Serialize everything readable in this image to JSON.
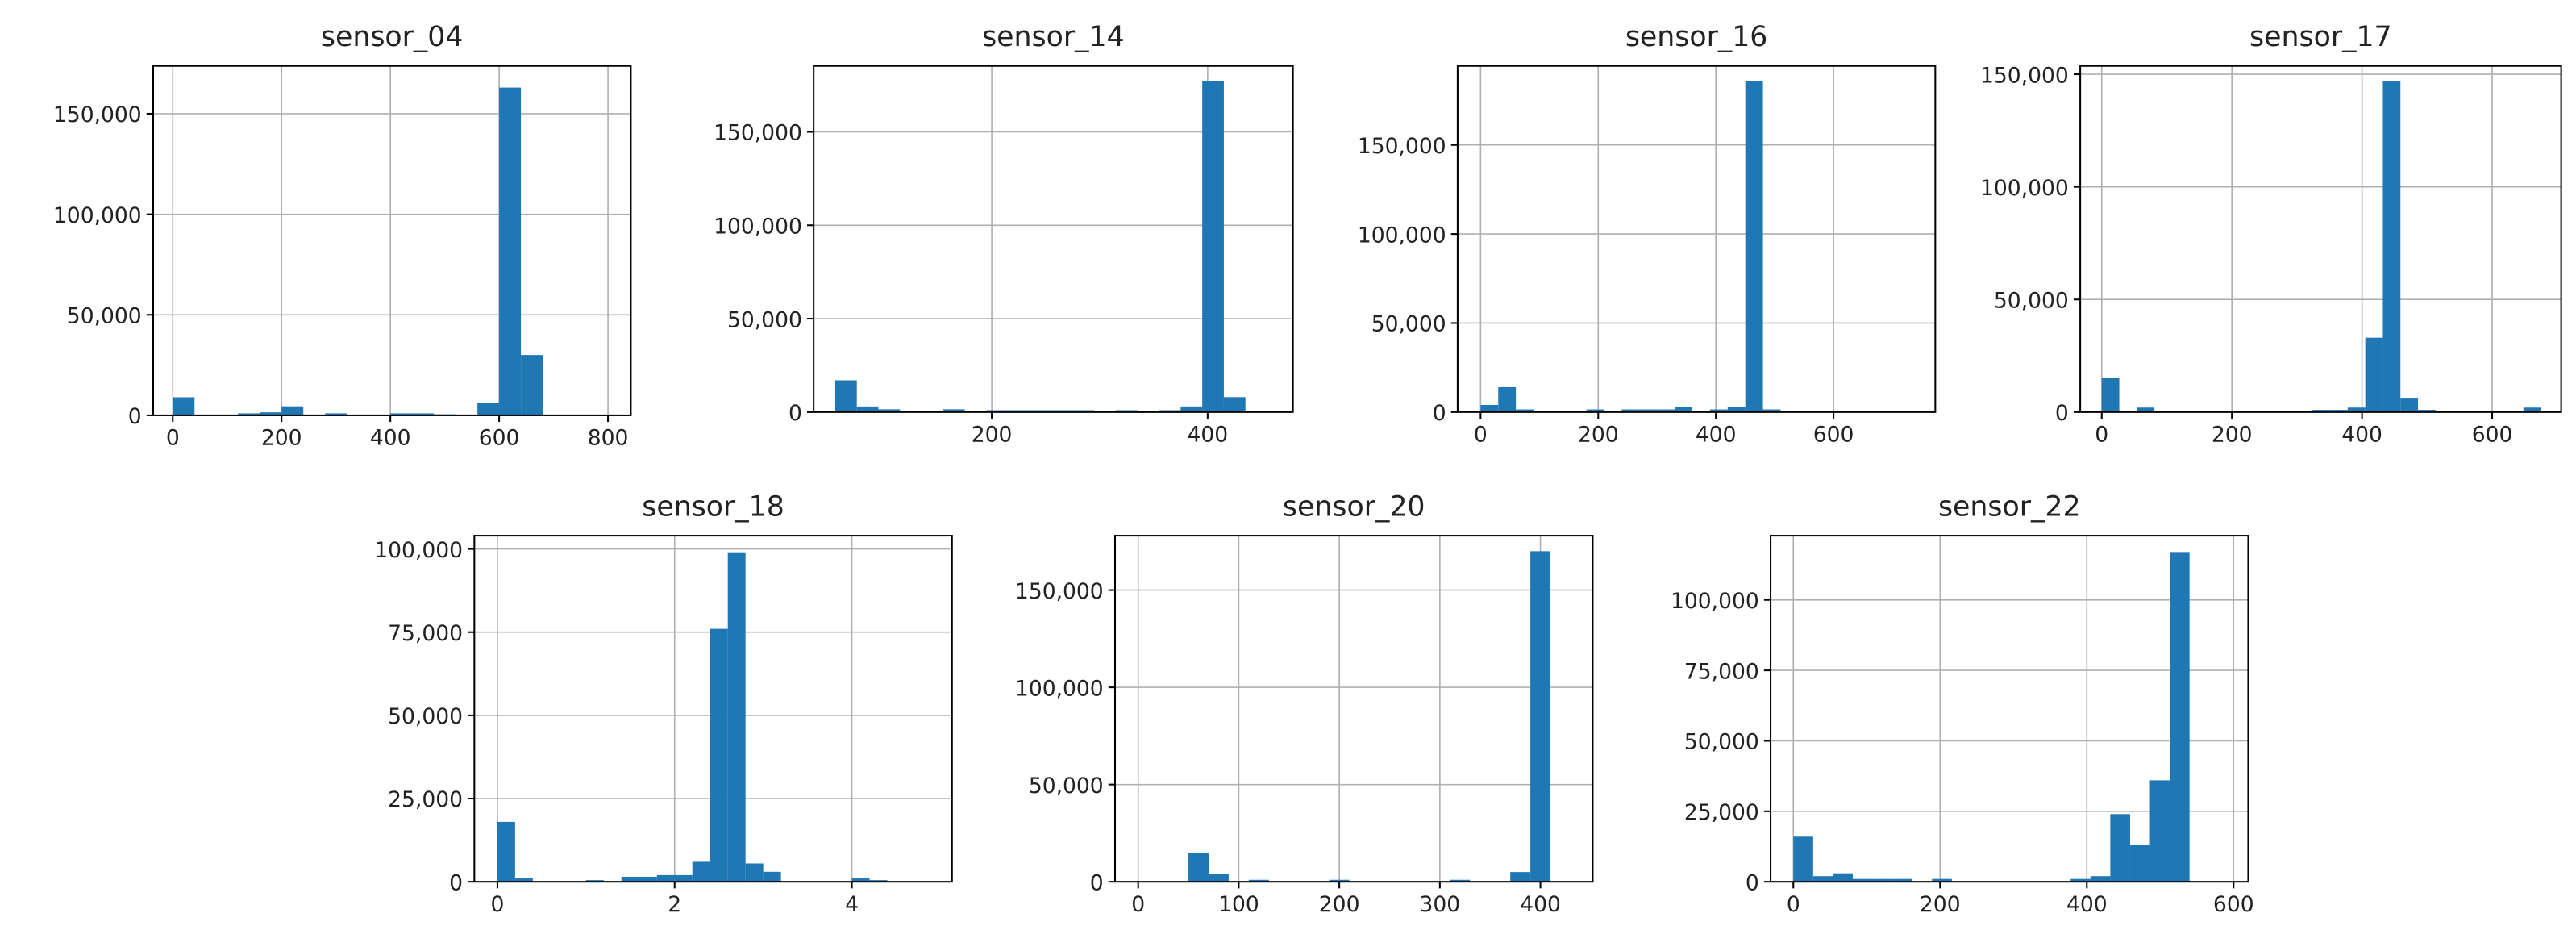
{
  "chart_data": [
    {
      "type": "histogram",
      "title": "sensor_04",
      "color": "#1f77b4",
      "grid": true,
      "bins": [
        0,
        40,
        80,
        120,
        160,
        200,
        240,
        280,
        320,
        360,
        400,
        440,
        480,
        520,
        560,
        600,
        640,
        680,
        720,
        760,
        800
      ],
      "values": [
        9000,
        0,
        0,
        1000,
        1500,
        4500,
        0,
        1000,
        0,
        0,
        1000,
        1000,
        500,
        0,
        6000,
        163000,
        30000,
        0,
        0,
        0
      ],
      "xlim": [
        -36,
        842
      ],
      "ylim": [
        0,
        173770
      ],
      "xticks": [
        0,
        200,
        400,
        600,
        800
      ],
      "yticks": [
        0,
        {
          "value": 50000,
          "label": "50,000"
        },
        {
          "value": 100000,
          "label": "100,000"
        },
        {
          "value": 150000,
          "label": "150,000"
        }
      ]
    },
    {
      "type": "histogram",
      "title": "sensor_14",
      "color": "#1f77b4",
      "grid": true,
      "bins": [
        55,
        75,
        95,
        115,
        135,
        155,
        175,
        195,
        215,
        235,
        255,
        275,
        295,
        315,
        335,
        355,
        375,
        395,
        415,
        435,
        455
      ],
      "values": [
        17000,
        3000,
        1500,
        500,
        0,
        1500,
        0,
        1000,
        1000,
        1000,
        1000,
        1000,
        0,
        1000,
        0,
        1000,
        3000,
        177000,
        8000,
        0
      ],
      "xlim": [
        35,
        479
      ],
      "ylim": [
        0,
        185300
      ],
      "xticks": [
        200,
        400
      ],
      "yticks": [
        0,
        {
          "value": 50000,
          "label": "50,000"
        },
        {
          "value": 100000,
          "label": "100,000"
        },
        {
          "value": 150000,
          "label": "150,000"
        }
      ]
    },
    {
      "type": "histogram",
      "title": "sensor_16",
      "color": "#1f77b4",
      "grid": true,
      "bins": [
        0,
        30,
        60,
        90,
        120,
        150,
        180,
        210,
        240,
        270,
        300,
        330,
        360,
        390,
        420,
        450,
        480,
        510,
        540,
        570,
        600,
        630,
        660,
        690,
        720,
        750
      ],
      "values": [
        4000,
        14000,
        1500,
        0,
        0,
        0,
        1500,
        0,
        1500,
        1500,
        1500,
        3000,
        0,
        1500,
        3000,
        186000,
        1500,
        0,
        0,
        0,
        0,
        0,
        0,
        0,
        0
      ],
      "xlim": [
        -39,
        773
      ],
      "ylim": [
        0,
        194400
      ],
      "xticks": [
        0,
        200,
        400,
        600
      ],
      "yticks": [
        0,
        {
          "value": 50000,
          "label": "50,000"
        },
        {
          "value": 100000,
          "label": "100,000"
        },
        {
          "value": 150000,
          "label": "150,000"
        }
      ]
    },
    {
      "type": "histogram",
      "title": "sensor_17",
      "color": "#1f77b4",
      "grid": true,
      "bins": [
        0,
        27,
        54,
        81,
        108,
        135,
        162,
        189,
        216,
        243,
        270,
        297,
        324,
        351,
        378,
        405,
        432,
        459,
        486,
        513,
        540,
        567,
        594,
        621,
        648,
        675
      ],
      "values": [
        15000,
        0,
        2000,
        0,
        0,
        0,
        0,
        0,
        0,
        0,
        0,
        0,
        1000,
        1000,
        2000,
        33000,
        147000,
        6000,
        1000,
        0,
        0,
        0,
        0,
        0,
        2000
      ],
      "xlim": [
        -33,
        706
      ],
      "ylim": [
        0,
        153700
      ],
      "xticks": [
        0,
        200,
        400,
        600
      ],
      "yticks": [
        0,
        {
          "value": 50000,
          "label": "50,000"
        },
        {
          "value": 100000,
          "label": "100,000"
        },
        {
          "value": 150000,
          "label": "150,000"
        }
      ]
    },
    {
      "type": "histogram",
      "title": "sensor_18",
      "color": "#1f77b4",
      "grid": true,
      "bins": [
        0,
        0.2,
        0.4,
        0.6,
        0.8,
        1.0,
        1.2,
        1.4,
        1.6,
        1.8,
        2.0,
        2.2,
        2.4,
        2.6,
        2.8,
        3.0,
        3.2,
        3.4,
        3.6,
        3.8,
        4.0,
        4.2,
        4.4,
        4.6,
        4.8,
        5.0
      ],
      "values": [
        18000,
        1000,
        0,
        0,
        0,
        500,
        0,
        1500,
        1500,
        2000,
        2000,
        6000,
        76000,
        99000,
        5500,
        3000,
        0,
        0,
        0,
        0,
        1000,
        500,
        0,
        0,
        0
      ],
      "xlim": [
        -0.26,
        5.13
      ],
      "ylim": [
        0,
        104000
      ],
      "xticks": [
        0,
        2,
        4
      ],
      "yticks": [
        0,
        {
          "value": 25000,
          "label": "25,000"
        },
        {
          "value": 50000,
          "label": "50,000"
        },
        {
          "value": 75000,
          "label": "75,000"
        },
        {
          "value": 100000,
          "label": "100,000"
        }
      ]
    },
    {
      "type": "histogram",
      "title": "sensor_20",
      "color": "#1f77b4",
      "grid": true,
      "bins": [
        10,
        30,
        50,
        70,
        90,
        110,
        130,
        150,
        170,
        190,
        210,
        230,
        250,
        270,
        290,
        310,
        330,
        350,
        370,
        390,
        410,
        430
      ],
      "values": [
        0,
        0,
        15000,
        4000,
        0,
        1000,
        0,
        0,
        0,
        1000,
        0,
        0,
        0,
        0,
        0,
        1000,
        0,
        0,
        5000,
        170000,
        0
      ],
      "xlim": [
        -23,
        452
      ],
      "ylim": [
        0,
        178000
      ],
      "xticks": [
        0,
        100,
        200,
        300,
        400
      ],
      "yticks": [
        0,
        {
          "value": 50000,
          "label": "50,000"
        },
        {
          "value": 100000,
          "label": "100,000"
        },
        {
          "value": 150000,
          "label": "150,000"
        }
      ]
    },
    {
      "type": "histogram",
      "title": "sensor_22",
      "color": "#1f77b4",
      "grid": true,
      "bins": [
        0,
        27,
        54,
        81,
        108,
        135,
        162,
        189,
        216,
        243,
        270,
        297,
        324,
        351,
        378,
        405,
        432,
        459,
        486,
        513,
        540,
        567,
        594
      ],
      "values": [
        16000,
        2000,
        3000,
        1000,
        1000,
        1000,
        0,
        1000,
        0,
        0,
        0,
        0,
        0,
        0,
        1000,
        2000,
        24000,
        13000,
        36000,
        117000,
        0,
        0
      ],
      "xlim": [
        -31,
        620
      ],
      "ylim": [
        0,
        122800
      ],
      "xticks": [
        0,
        200,
        400,
        600
      ],
      "yticks": [
        0,
        {
          "value": 25000,
          "label": "25,000"
        },
        {
          "value": 50000,
          "label": "50,000"
        },
        {
          "value": 75000,
          "label": "75,000"
        },
        {
          "value": 100000,
          "label": "100,000"
        }
      ]
    }
  ]
}
